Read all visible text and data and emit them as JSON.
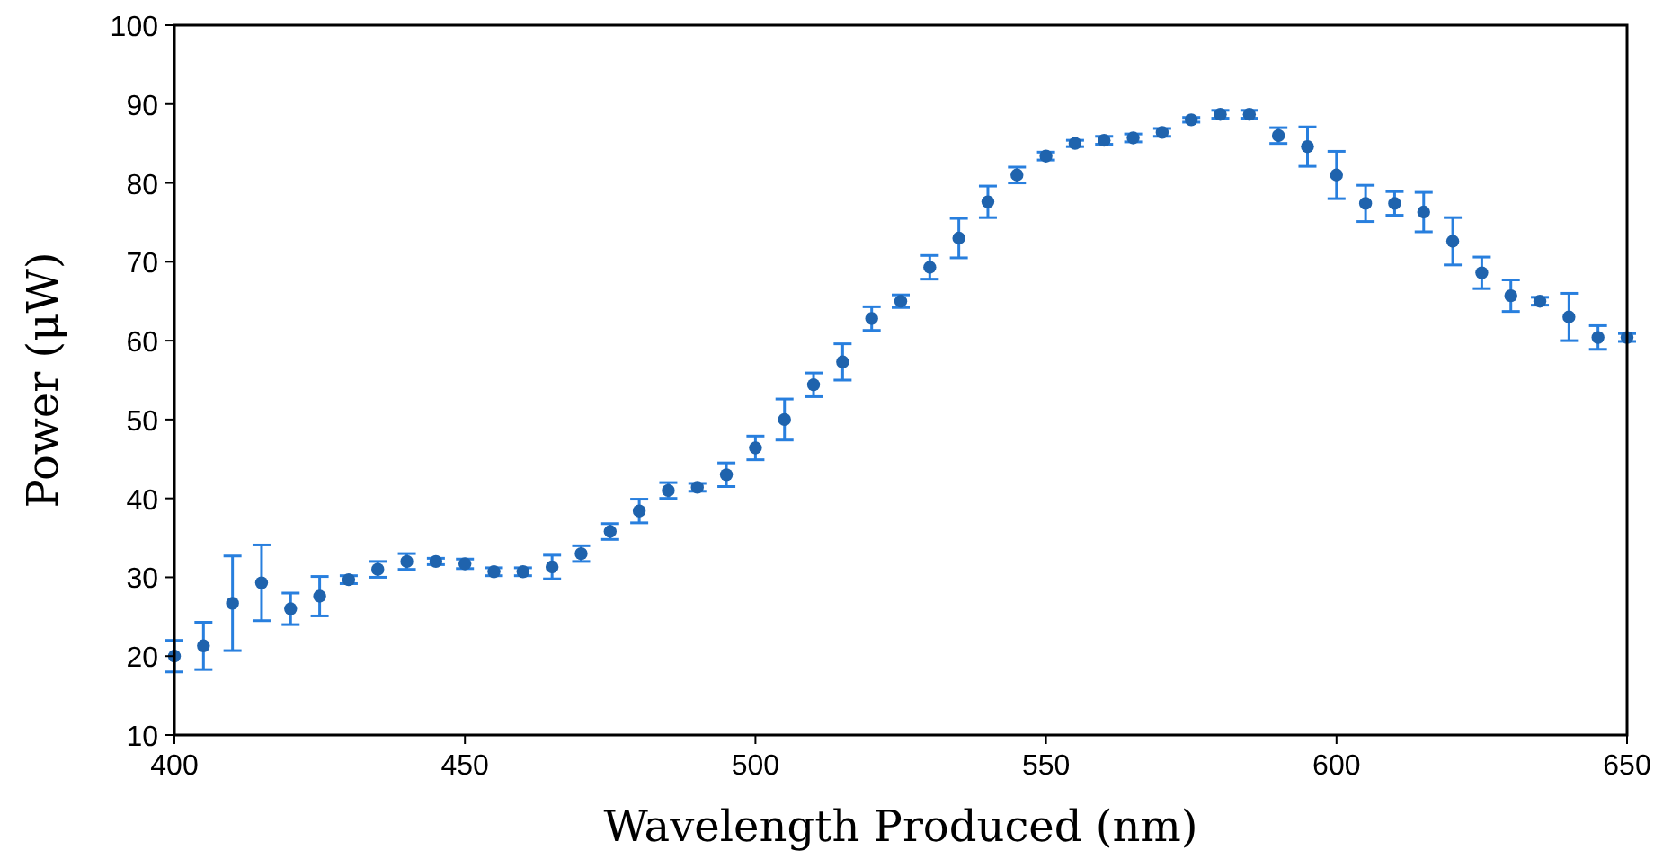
{
  "chart_data": {
    "type": "scatter",
    "xlabel": "Wavelength Produced (nm)",
    "ylabel": "Power (μW)",
    "x": [
      400,
      405,
      410,
      415,
      420,
      425,
      430,
      435,
      440,
      445,
      450,
      455,
      460,
      465,
      470,
      475,
      480,
      485,
      490,
      495,
      500,
      505,
      510,
      515,
      520,
      525,
      530,
      535,
      540,
      545,
      550,
      555,
      560,
      565,
      570,
      575,
      580,
      585,
      590,
      595,
      600,
      605,
      610,
      615,
      620,
      625,
      630,
      635,
      640,
      645,
      650
    ],
    "series": [
      {
        "color": "#1f63ad",
        "values": [
          20,
          21.3,
          26.7,
          29.3,
          26,
          27.6,
          29.7,
          31,
          32,
          32,
          31.7,
          30.7,
          30.7,
          31.3,
          33,
          35.8,
          38.4,
          41,
          41.4,
          43,
          46.4,
          50,
          54.4,
          57.3,
          62.8,
          65,
          69.3,
          73,
          77.6,
          81,
          83.4,
          85,
          85.4,
          85.7,
          86.4,
          88,
          88.7,
          88.7,
          86,
          84.6,
          81,
          77.4,
          77.4,
          76.3,
          72.6,
          68.6,
          65.7,
          65,
          63,
          60.4,
          60.4
        ],
        "errors": [
          2,
          3,
          6,
          4.8,
          2,
          2.5,
          0.5,
          1,
          1,
          0.4,
          0.6,
          0.5,
          0.5,
          1.5,
          1,
          1,
          1.5,
          1,
          0.5,
          1.5,
          1.5,
          2.6,
          1.5,
          2.3,
          1.5,
          0.8,
          1.5,
          2.5,
          2,
          1,
          0.5,
          0.4,
          0.5,
          0.5,
          0.5,
          0.3,
          0.5,
          0.5,
          1,
          2.5,
          3,
          2.3,
          1.5,
          2.5,
          3,
          2,
          2,
          0.5,
          3,
          1.5,
          0.5
        ]
      }
    ],
    "xlim": [
      400,
      650
    ],
    "xticks": [
      400,
      450,
      500,
      550,
      600,
      650
    ],
    "ylim": [
      10,
      100
    ],
    "yticks": [
      10,
      20,
      30,
      40,
      50,
      60,
      70,
      80,
      90,
      100
    ],
    "marker": "circle",
    "grid": false
  }
}
